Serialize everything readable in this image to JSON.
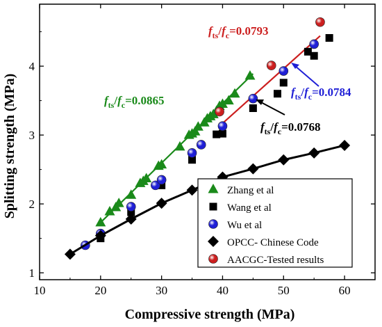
{
  "chart_data": {
    "type": "scatter",
    "title": "",
    "xlabel": "Compressive strength (MPa)",
    "ylabel": "Splitting strength (MPa)",
    "xlim": [
      10,
      65
    ],
    "ylim": [
      0.9,
      4.9
    ],
    "xticks": [
      10,
      20,
      30,
      40,
      50,
      60
    ],
    "yticks": [
      1,
      2,
      3,
      4
    ],
    "grid": false,
    "legend_position": "bottom-right",
    "series": [
      {
        "name": "Zhang et al",
        "marker": "triangle",
        "color": "#1a8a1a",
        "points": [
          [
            20.0,
            1.73
          ],
          [
            21.5,
            1.89
          ],
          [
            22.5,
            1.95
          ],
          [
            23.0,
            2.01
          ],
          [
            25.0,
            2.13
          ],
          [
            26.5,
            2.3
          ],
          [
            27.0,
            2.33
          ],
          [
            27.5,
            2.37
          ],
          [
            29.5,
            2.55
          ],
          [
            30.0,
            2.57
          ],
          [
            33.0,
            2.83
          ],
          [
            34.5,
            3.0
          ],
          [
            35.0,
            3.02
          ],
          [
            35.5,
            3.05
          ],
          [
            36.0,
            3.12
          ],
          [
            37.0,
            3.18
          ],
          [
            37.5,
            3.24
          ],
          [
            38.0,
            3.27
          ],
          [
            38.5,
            3.3
          ],
          [
            39.0,
            3.35
          ],
          [
            39.5,
            3.42
          ],
          [
            40.0,
            3.45
          ],
          [
            41.0,
            3.5
          ],
          [
            42.0,
            3.6
          ],
          [
            44.5,
            3.86
          ]
        ]
      },
      {
        "name": "Wang et al",
        "marker": "square",
        "color": "#000000",
        "points": [
          [
            20.0,
            1.5
          ],
          [
            25.0,
            1.88
          ],
          [
            30.0,
            2.27
          ],
          [
            35.0,
            2.64
          ],
          [
            39.0,
            3.01
          ],
          [
            40.0,
            3.02
          ],
          [
            45.0,
            3.39
          ],
          [
            49.0,
            3.6
          ],
          [
            50.0,
            3.76
          ],
          [
            54.0,
            4.21
          ],
          [
            55.0,
            4.15
          ],
          [
            57.5,
            4.41
          ]
        ]
      },
      {
        "name": "Wu et al",
        "marker": "circle",
        "color": "#1f1fd6",
        "points": [
          [
            17.5,
            1.4
          ],
          [
            20.0,
            1.57
          ],
          [
            25.0,
            1.96
          ],
          [
            29.0,
            2.27
          ],
          [
            30.0,
            2.35
          ],
          [
            35.0,
            2.74
          ],
          [
            36.5,
            2.86
          ],
          [
            40.0,
            3.13
          ],
          [
            45.0,
            3.53
          ],
          [
            50.0,
            3.93
          ],
          [
            55.0,
            4.32
          ]
        ]
      },
      {
        "name": "OPCC- Chinese Code",
        "marker": "diamond",
        "color": "#000000",
        "points": [
          [
            15,
            1.27
          ],
          [
            20,
            1.54
          ],
          [
            25,
            1.78
          ],
          [
            30,
            2.01
          ],
          [
            35,
            2.2
          ],
          [
            40,
            2.39
          ],
          [
            45,
            2.51
          ],
          [
            50,
            2.64
          ],
          [
            55,
            2.74
          ],
          [
            60,
            2.85
          ]
        ]
      },
      {
        "name": "AACGC-Tested results",
        "marker": "circle",
        "color": "#cc1f1f",
        "points": [
          [
            39.5,
            3.34
          ],
          [
            48.0,
            4.01
          ],
          [
            56.0,
            4.64
          ]
        ]
      }
    ],
    "fit_lines": [
      {
        "label_main": "f",
        "label_sub1": "ts",
        "label_slash": "/",
        "label_sub2": "c",
        "label_value": "=0.0865",
        "color": "#1a8a1a",
        "x": [
          20,
          45
        ],
        "y": [
          1.73,
          3.89
        ]
      },
      {
        "label_main": "f",
        "label_sub1": "ts",
        "label_slash": "/",
        "label_sub2": "c",
        "label_value": "=0.0793",
        "color": "#cc1f1f",
        "x": [
          39.5,
          56
        ],
        "y": [
          3.13,
          4.44
        ]
      },
      {
        "label_main": "f",
        "label_sub1": "ts",
        "label_slash": "/",
        "label_sub2": "c",
        "label_value": "=0.0784",
        "color": "#1f1fd6",
        "x": [],
        "y": []
      },
      {
        "label_main": "f",
        "label_sub1": "ts",
        "label_slash": "/",
        "label_sub2": "c",
        "label_value": "=0.0768",
        "color": "#000000",
        "x": [],
        "y": []
      }
    ]
  }
}
